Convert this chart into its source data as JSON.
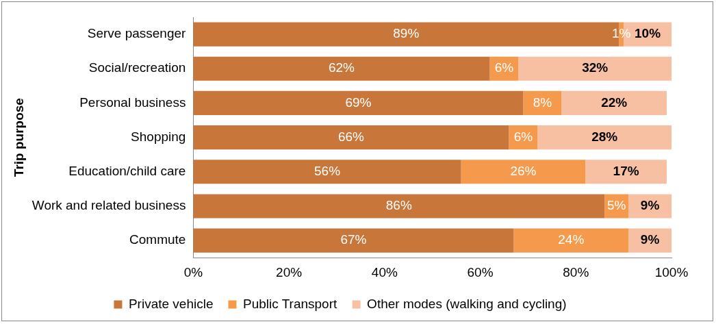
{
  "chart_data": {
    "type": "bar",
    "orientation": "horizontal",
    "stacked": true,
    "ylabel": "Trip purpose",
    "categories": [
      "Serve passenger",
      "Social/recreation",
      "Personal business",
      "Shopping",
      "Education/child care",
      "Work and related business",
      "Commute"
    ],
    "series": [
      {
        "name": "Private vehicle",
        "color": "#c8763a",
        "values": [
          89,
          62,
          69,
          66,
          56,
          86,
          67
        ],
        "value_labels": [
          "89%",
          "62%",
          "69%",
          "66%",
          "56%",
          "86%",
          "67%"
        ]
      },
      {
        "name": "Public Transport",
        "color": "#f59a4c",
        "values": [
          1,
          6,
          8,
          6,
          26,
          5,
          24
        ],
        "value_labels": [
          "1%",
          "6%",
          "8%",
          "6%",
          "26%",
          "5%",
          "24%"
        ]
      },
      {
        "name": "Other modes (walking and cycling)",
        "color": "#f8c0a2",
        "values": [
          10,
          32,
          22,
          28,
          17,
          9,
          9
        ],
        "value_labels": [
          "10%",
          "32%",
          "22%",
          "28%",
          "17%",
          "9%",
          "9%"
        ]
      }
    ],
    "xlim": [
      0,
      100
    ],
    "xticks": [
      {
        "value": 0,
        "label": "0%"
      },
      {
        "value": 20,
        "label": "20%"
      },
      {
        "value": 40,
        "label": "40%"
      },
      {
        "value": 60,
        "label": "60%"
      },
      {
        "value": 80,
        "label": "80%"
      },
      {
        "value": 100,
        "label": "100%"
      }
    ],
    "grid": false,
    "legend": "bottom"
  }
}
